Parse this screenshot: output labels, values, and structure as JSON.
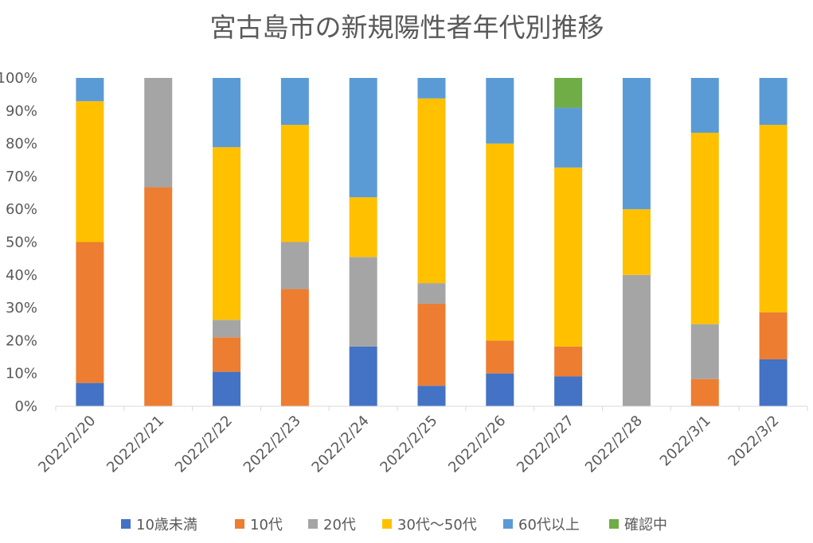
{
  "chart_data": {
    "type": "bar",
    "stacked": "percent",
    "title": "宮古島市の新規陽性者年代別推移",
    "xlabel": "",
    "ylabel": "",
    "ylim": [
      0,
      100
    ],
    "yticks": [
      "0%",
      "10%",
      "20%",
      "30%",
      "40%",
      "50%",
      "60%",
      "70%",
      "80%",
      "90%",
      "100%"
    ],
    "grid": false,
    "legend_position": "bottom",
    "categories": [
      "2022/2/20",
      "2022/2/21",
      "2022/2/22",
      "2022/2/23",
      "2022/2/24",
      "2022/2/25",
      "2022/2/26",
      "2022/2/27",
      "2022/2/28",
      "2022/3/1",
      "2022/3/2"
    ],
    "series": [
      {
        "name": "10歳未満",
        "color": "#4472C4",
        "values": [
          7.1,
          0,
          10.5,
          0,
          18.2,
          6.25,
          10,
          9.1,
          0,
          0,
          14.3
        ]
      },
      {
        "name": "10代",
        "color": "#ED7D31",
        "values": [
          42.9,
          66.7,
          10.5,
          35.7,
          0,
          25,
          10,
          9.1,
          0,
          8.3,
          14.3
        ]
      },
      {
        "name": "20代",
        "color": "#A5A5A5",
        "values": [
          0,
          33.3,
          5.3,
          14.3,
          27.3,
          6.25,
          0,
          0,
          40,
          16.7,
          0
        ]
      },
      {
        "name": "30代〜50代",
        "color": "#FFC000",
        "values": [
          42.9,
          0,
          52.6,
          35.7,
          18.2,
          56.25,
          60,
          54.5,
          20,
          58.3,
          57.1
        ]
      },
      {
        "name": "60代以上",
        "color": "#5B9BD5",
        "values": [
          7.1,
          0,
          21.1,
          14.3,
          36.4,
          6.25,
          20,
          18.2,
          40,
          16.7,
          14.3
        ]
      },
      {
        "name": "確認中",
        "color": "#70AD47",
        "values": [
          0,
          0,
          0,
          0,
          0,
          0,
          0,
          9.1,
          0,
          0,
          0
        ]
      }
    ]
  }
}
